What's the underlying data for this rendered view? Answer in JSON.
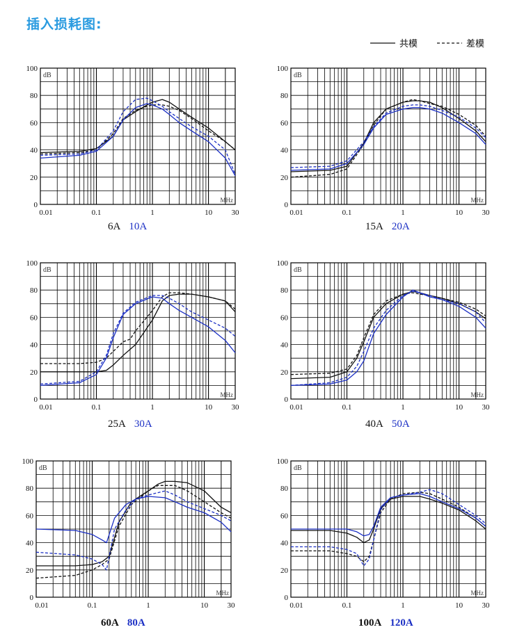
{
  "page": {
    "title": "插入损耗图:"
  },
  "legend": {
    "solid_label": "共模",
    "dashed_label": "差模"
  },
  "colors": {
    "black": "#111111",
    "blue": "#1b2fc4",
    "grid": "#000000",
    "title": "#2a9be0"
  },
  "chart_data": [
    {
      "type": "line",
      "x_scale": "log",
      "xlim": [
        0.01,
        30
      ],
      "ylim": [
        0,
        100
      ],
      "unit_label": "dB",
      "x_unit_label": "MHz",
      "x_tick_labels": [
        "0.01",
        "0.1",
        "1",
        "10",
        "30"
      ],
      "y_tick_labels": [
        "0",
        "20",
        "40",
        "60",
        "80",
        "100"
      ],
      "caption_black": "6A",
      "caption_blue": "10A",
      "series": [
        {
          "color": "black",
          "dash": false,
          "x": [
            0.01,
            0.05,
            0.1,
            0.2,
            0.3,
            0.5,
            0.8,
            1,
            1.5,
            2,
            3,
            5,
            10,
            20,
            30
          ],
          "y": [
            38,
            39,
            41,
            50,
            62,
            68,
            73,
            75,
            77,
            75,
            70,
            64,
            56,
            46,
            40
          ]
        },
        {
          "color": "black",
          "dash": true,
          "x": [
            0.01,
            0.05,
            0.1,
            0.2,
            0.3,
            0.5,
            0.8,
            1,
            1.5,
            2,
            3,
            5,
            10,
            20,
            30
          ],
          "y": [
            37,
            38,
            40,
            52,
            63,
            69,
            72,
            73,
            73,
            72,
            69,
            63,
            54,
            46,
            40
          ]
        },
        {
          "color": "blue",
          "dash": false,
          "x": [
            0.01,
            0.05,
            0.1,
            0.2,
            0.3,
            0.5,
            0.8,
            1,
            1.5,
            2,
            3,
            5,
            10,
            20,
            30
          ],
          "y": [
            34,
            36,
            39,
            50,
            62,
            71,
            74,
            73,
            70,
            66,
            60,
            54,
            46,
            34,
            21
          ]
        },
        {
          "color": "blue",
          "dash": true,
          "x": [
            0.01,
            0.05,
            0.1,
            0.2,
            0.3,
            0.5,
            0.8,
            1,
            1.5,
            2,
            3,
            5,
            10,
            20,
            30
          ],
          "y": [
            36,
            37,
            40,
            54,
            68,
            77,
            78,
            76,
            72,
            68,
            63,
            57,
            50,
            40,
            22
          ]
        }
      ]
    },
    {
      "type": "line",
      "x_scale": "log",
      "xlim": [
        0.01,
        30
      ],
      "ylim": [
        0,
        100
      ],
      "unit_label": "dB",
      "x_unit_label": "MHz",
      "x_tick_labels": [
        "0.01",
        "0.1",
        "1",
        "10",
        "30"
      ],
      "y_tick_labels": [
        "0",
        "20",
        "40",
        "60",
        "80",
        "100"
      ],
      "caption_black": "15A",
      "caption_blue": "20A",
      "series": [
        {
          "color": "black",
          "dash": false,
          "x": [
            0.01,
            0.05,
            0.1,
            0.2,
            0.3,
            0.5,
            1,
            1.5,
            2,
            3,
            5,
            10,
            20,
            30
          ],
          "y": [
            24,
            25,
            28,
            45,
            60,
            70,
            75,
            76,
            76,
            75,
            71,
            63,
            54,
            46
          ]
        },
        {
          "color": "black",
          "dash": true,
          "x": [
            0.01,
            0.05,
            0.1,
            0.2,
            0.3,
            0.5,
            1,
            1.5,
            2,
            3,
            5,
            10,
            20,
            30
          ],
          "y": [
            20,
            22,
            26,
            44,
            58,
            70,
            75,
            77,
            76,
            74,
            72,
            66,
            58,
            50
          ]
        },
        {
          "color": "blue",
          "dash": false,
          "x": [
            0.01,
            0.05,
            0.1,
            0.2,
            0.3,
            0.5,
            1,
            1.5,
            2,
            3,
            5,
            10,
            20,
            30
          ],
          "y": [
            25,
            26,
            30,
            44,
            56,
            66,
            70,
            71,
            71,
            70,
            67,
            60,
            52,
            44
          ]
        },
        {
          "color": "blue",
          "dash": true,
          "x": [
            0.01,
            0.05,
            0.1,
            0.2,
            0.3,
            0.5,
            1,
            1.5,
            2,
            3,
            5,
            10,
            20,
            30
          ],
          "y": [
            27,
            28,
            32,
            46,
            57,
            67,
            72,
            73,
            73,
            72,
            69,
            64,
            56,
            49
          ]
        }
      ]
    },
    {
      "type": "line",
      "x_scale": "log",
      "xlim": [
        0.01,
        30
      ],
      "ylim": [
        0,
        100
      ],
      "unit_label": "dB",
      "x_unit_label": "MHz",
      "x_tick_labels": [
        "0.01",
        "0.1",
        "1",
        "10",
        "30"
      ],
      "y_tick_labels": [
        "0",
        "20",
        "40",
        "60",
        "80",
        "100"
      ],
      "caption_black": "25A",
      "caption_blue": "30A",
      "series": [
        {
          "color": "black",
          "dash": false,
          "x": [
            0.01,
            0.05,
            0.1,
            0.15,
            0.2,
            0.3,
            0.5,
            1,
            1.5,
            2,
            3,
            5,
            10,
            20,
            30
          ],
          "y": [
            20,
            20,
            20,
            21,
            25,
            32,
            40,
            58,
            72,
            76,
            77,
            77,
            75,
            72,
            64
          ]
        },
        {
          "color": "black",
          "dash": true,
          "x": [
            0.01,
            0.05,
            0.1,
            0.15,
            0.2,
            0.3,
            0.4,
            0.5,
            1,
            1.5,
            2,
            3,
            5,
            10,
            20,
            30
          ],
          "y": [
            26,
            26,
            27,
            30,
            35,
            42,
            44,
            50,
            65,
            75,
            78,
            78,
            77,
            75,
            72,
            66
          ]
        },
        {
          "color": "blue",
          "dash": false,
          "x": [
            0.01,
            0.05,
            0.1,
            0.15,
            0.2,
            0.3,
            0.5,
            1,
            1.5,
            2,
            3,
            5,
            10,
            20,
            30
          ],
          "y": [
            10,
            12,
            18,
            30,
            45,
            62,
            70,
            75,
            74,
            70,
            65,
            60,
            53,
            43,
            34
          ]
        },
        {
          "color": "blue",
          "dash": true,
          "x": [
            0.01,
            0.05,
            0.1,
            0.15,
            0.2,
            0.3,
            0.5,
            1,
            1.5,
            2,
            3,
            5,
            10,
            20,
            30
          ],
          "y": [
            11,
            13,
            20,
            32,
            48,
            63,
            71,
            76,
            76,
            74,
            70,
            64,
            58,
            52,
            46
          ]
        }
      ]
    },
    {
      "type": "line",
      "x_scale": "log",
      "xlim": [
        0.01,
        30
      ],
      "ylim": [
        0,
        100
      ],
      "unit_label": "dB",
      "x_unit_label": "MHz",
      "x_tick_labels": [
        "0.01",
        "0.1",
        "1",
        "10",
        "30"
      ],
      "y_tick_labels": [
        "0",
        "20",
        "40",
        "60",
        "80",
        "100"
      ],
      "caption_black": "40A",
      "caption_blue": "50A",
      "series": [
        {
          "color": "black",
          "dash": false,
          "x": [
            0.01,
            0.05,
            0.1,
            0.15,
            0.2,
            0.3,
            0.5,
            1,
            1.5,
            2,
            3,
            5,
            10,
            20,
            30
          ],
          "y": [
            15,
            16,
            20,
            30,
            42,
            60,
            70,
            77,
            79,
            78,
            76,
            74,
            70,
            64,
            59
          ]
        },
        {
          "color": "black",
          "dash": true,
          "x": [
            0.01,
            0.05,
            0.1,
            0.15,
            0.2,
            0.3,
            0.5,
            1,
            1.5,
            2,
            3,
            5,
            10,
            20,
            30
          ],
          "y": [
            18,
            19,
            22,
            32,
            45,
            62,
            72,
            77,
            78,
            77,
            76,
            74,
            71,
            66,
            61
          ]
        },
        {
          "color": "blue",
          "dash": false,
          "x": [
            0.01,
            0.05,
            0.1,
            0.15,
            0.2,
            0.3,
            0.5,
            1,
            1.5,
            2,
            3,
            5,
            10,
            20,
            30
          ],
          "y": [
            10,
            11,
            14,
            20,
            28,
            48,
            62,
            75,
            80,
            78,
            75,
            73,
            68,
            60,
            52
          ]
        },
        {
          "color": "blue",
          "dash": true,
          "x": [
            0.01,
            0.05,
            0.1,
            0.15,
            0.2,
            0.3,
            0.5,
            1,
            1.5,
            2,
            3,
            5,
            10,
            20,
            30
          ],
          "y": [
            10,
            12,
            16,
            24,
            35,
            52,
            65,
            76,
            79,
            78,
            76,
            73,
            70,
            64,
            56
          ]
        }
      ]
    },
    {
      "type": "line",
      "x_scale": "log",
      "xlim": [
        0.01,
        30
      ],
      "ylim": [
        0,
        100
      ],
      "unit_label": "dB",
      "x_unit_label": "MHz",
      "x_tick_labels": [
        "0.01",
        "0.1",
        "1",
        "10",
        "30"
      ],
      "y_tick_labels": [
        "0",
        "20",
        "40",
        "60",
        "80",
        "100"
      ],
      "caption_black": "60A",
      "caption_blue": "80A",
      "series": [
        {
          "color": "black",
          "dash": false,
          "x": [
            0.01,
            0.05,
            0.1,
            0.15,
            0.2,
            0.3,
            0.5,
            1,
            1.5,
            2,
            3,
            5,
            10,
            20,
            30
          ],
          "y": [
            23,
            23,
            24,
            26,
            30,
            55,
            70,
            78,
            83,
            85,
            85,
            84,
            78,
            66,
            62
          ]
        },
        {
          "color": "black",
          "dash": true,
          "x": [
            0.01,
            0.05,
            0.1,
            0.15,
            0.2,
            0.3,
            0.5,
            1,
            1.5,
            2,
            3,
            5,
            10,
            20,
            30
          ],
          "y": [
            14,
            16,
            20,
            24,
            28,
            52,
            68,
            78,
            82,
            82,
            82,
            78,
            70,
            62,
            58
          ]
        },
        {
          "color": "blue",
          "dash": false,
          "x": [
            0.01,
            0.05,
            0.1,
            0.15,
            0.18,
            0.25,
            0.4,
            0.6,
            1,
            2,
            3,
            5,
            10,
            20,
            30
          ],
          "y": [
            50,
            49,
            46,
            42,
            40,
            58,
            68,
            72,
            74,
            73,
            70,
            66,
            62,
            55,
            48
          ]
        },
        {
          "color": "blue",
          "dash": true,
          "x": [
            0.01,
            0.05,
            0.1,
            0.15,
            0.18,
            0.25,
            0.4,
            0.6,
            1,
            2,
            3,
            5,
            10,
            20,
            30
          ],
          "y": [
            33,
            31,
            28,
            24,
            20,
            50,
            64,
            72,
            75,
            78,
            75,
            70,
            65,
            60,
            56
          ]
        }
      ]
    },
    {
      "type": "line",
      "x_scale": "log",
      "xlim": [
        0.01,
        30
      ],
      "ylim": [
        0,
        100
      ],
      "unit_label": "dB",
      "x_unit_label": "MHz",
      "x_tick_labels": [
        "0.01",
        "0.1",
        "1",
        "10",
        "30"
      ],
      "y_tick_labels": [
        "0",
        "20",
        "40",
        "60",
        "80",
        "100"
      ],
      "caption_black": "100A",
      "caption_blue": "120A",
      "series": [
        {
          "color": "black",
          "dash": false,
          "x": [
            0.01,
            0.05,
            0.1,
            0.15,
            0.2,
            0.25,
            0.3,
            0.4,
            0.6,
            1,
            2,
            3,
            5,
            10,
            20,
            30
          ],
          "y": [
            49,
            49,
            47,
            44,
            40,
            42,
            50,
            65,
            72,
            74,
            74,
            72,
            69,
            64,
            56,
            50
          ]
        },
        {
          "color": "black",
          "dash": true,
          "x": [
            0.01,
            0.05,
            0.1,
            0.15,
            0.2,
            0.25,
            0.3,
            0.4,
            0.6,
            1,
            2,
            3,
            5,
            10,
            20,
            30
          ],
          "y": [
            34,
            34,
            32,
            30,
            26,
            30,
            42,
            62,
            72,
            76,
            77,
            76,
            72,
            66,
            58,
            52
          ]
        },
        {
          "color": "blue",
          "dash": false,
          "x": [
            0.01,
            0.05,
            0.1,
            0.15,
            0.2,
            0.25,
            0.3,
            0.4,
            0.6,
            1,
            2,
            3,
            5,
            10,
            20,
            30
          ],
          "y": [
            50,
            50,
            50,
            48,
            45,
            46,
            52,
            66,
            73,
            75,
            76,
            74,
            70,
            65,
            58,
            52
          ]
        },
        {
          "color": "blue",
          "dash": true,
          "x": [
            0.01,
            0.05,
            0.1,
            0.15,
            0.2,
            0.25,
            0.3,
            0.4,
            0.6,
            1,
            2,
            3,
            5,
            10,
            20,
            30
          ],
          "y": [
            37,
            37,
            35,
            32,
            23,
            28,
            42,
            64,
            73,
            75,
            77,
            79,
            76,
            68,
            60,
            54
          ]
        }
      ]
    }
  ]
}
